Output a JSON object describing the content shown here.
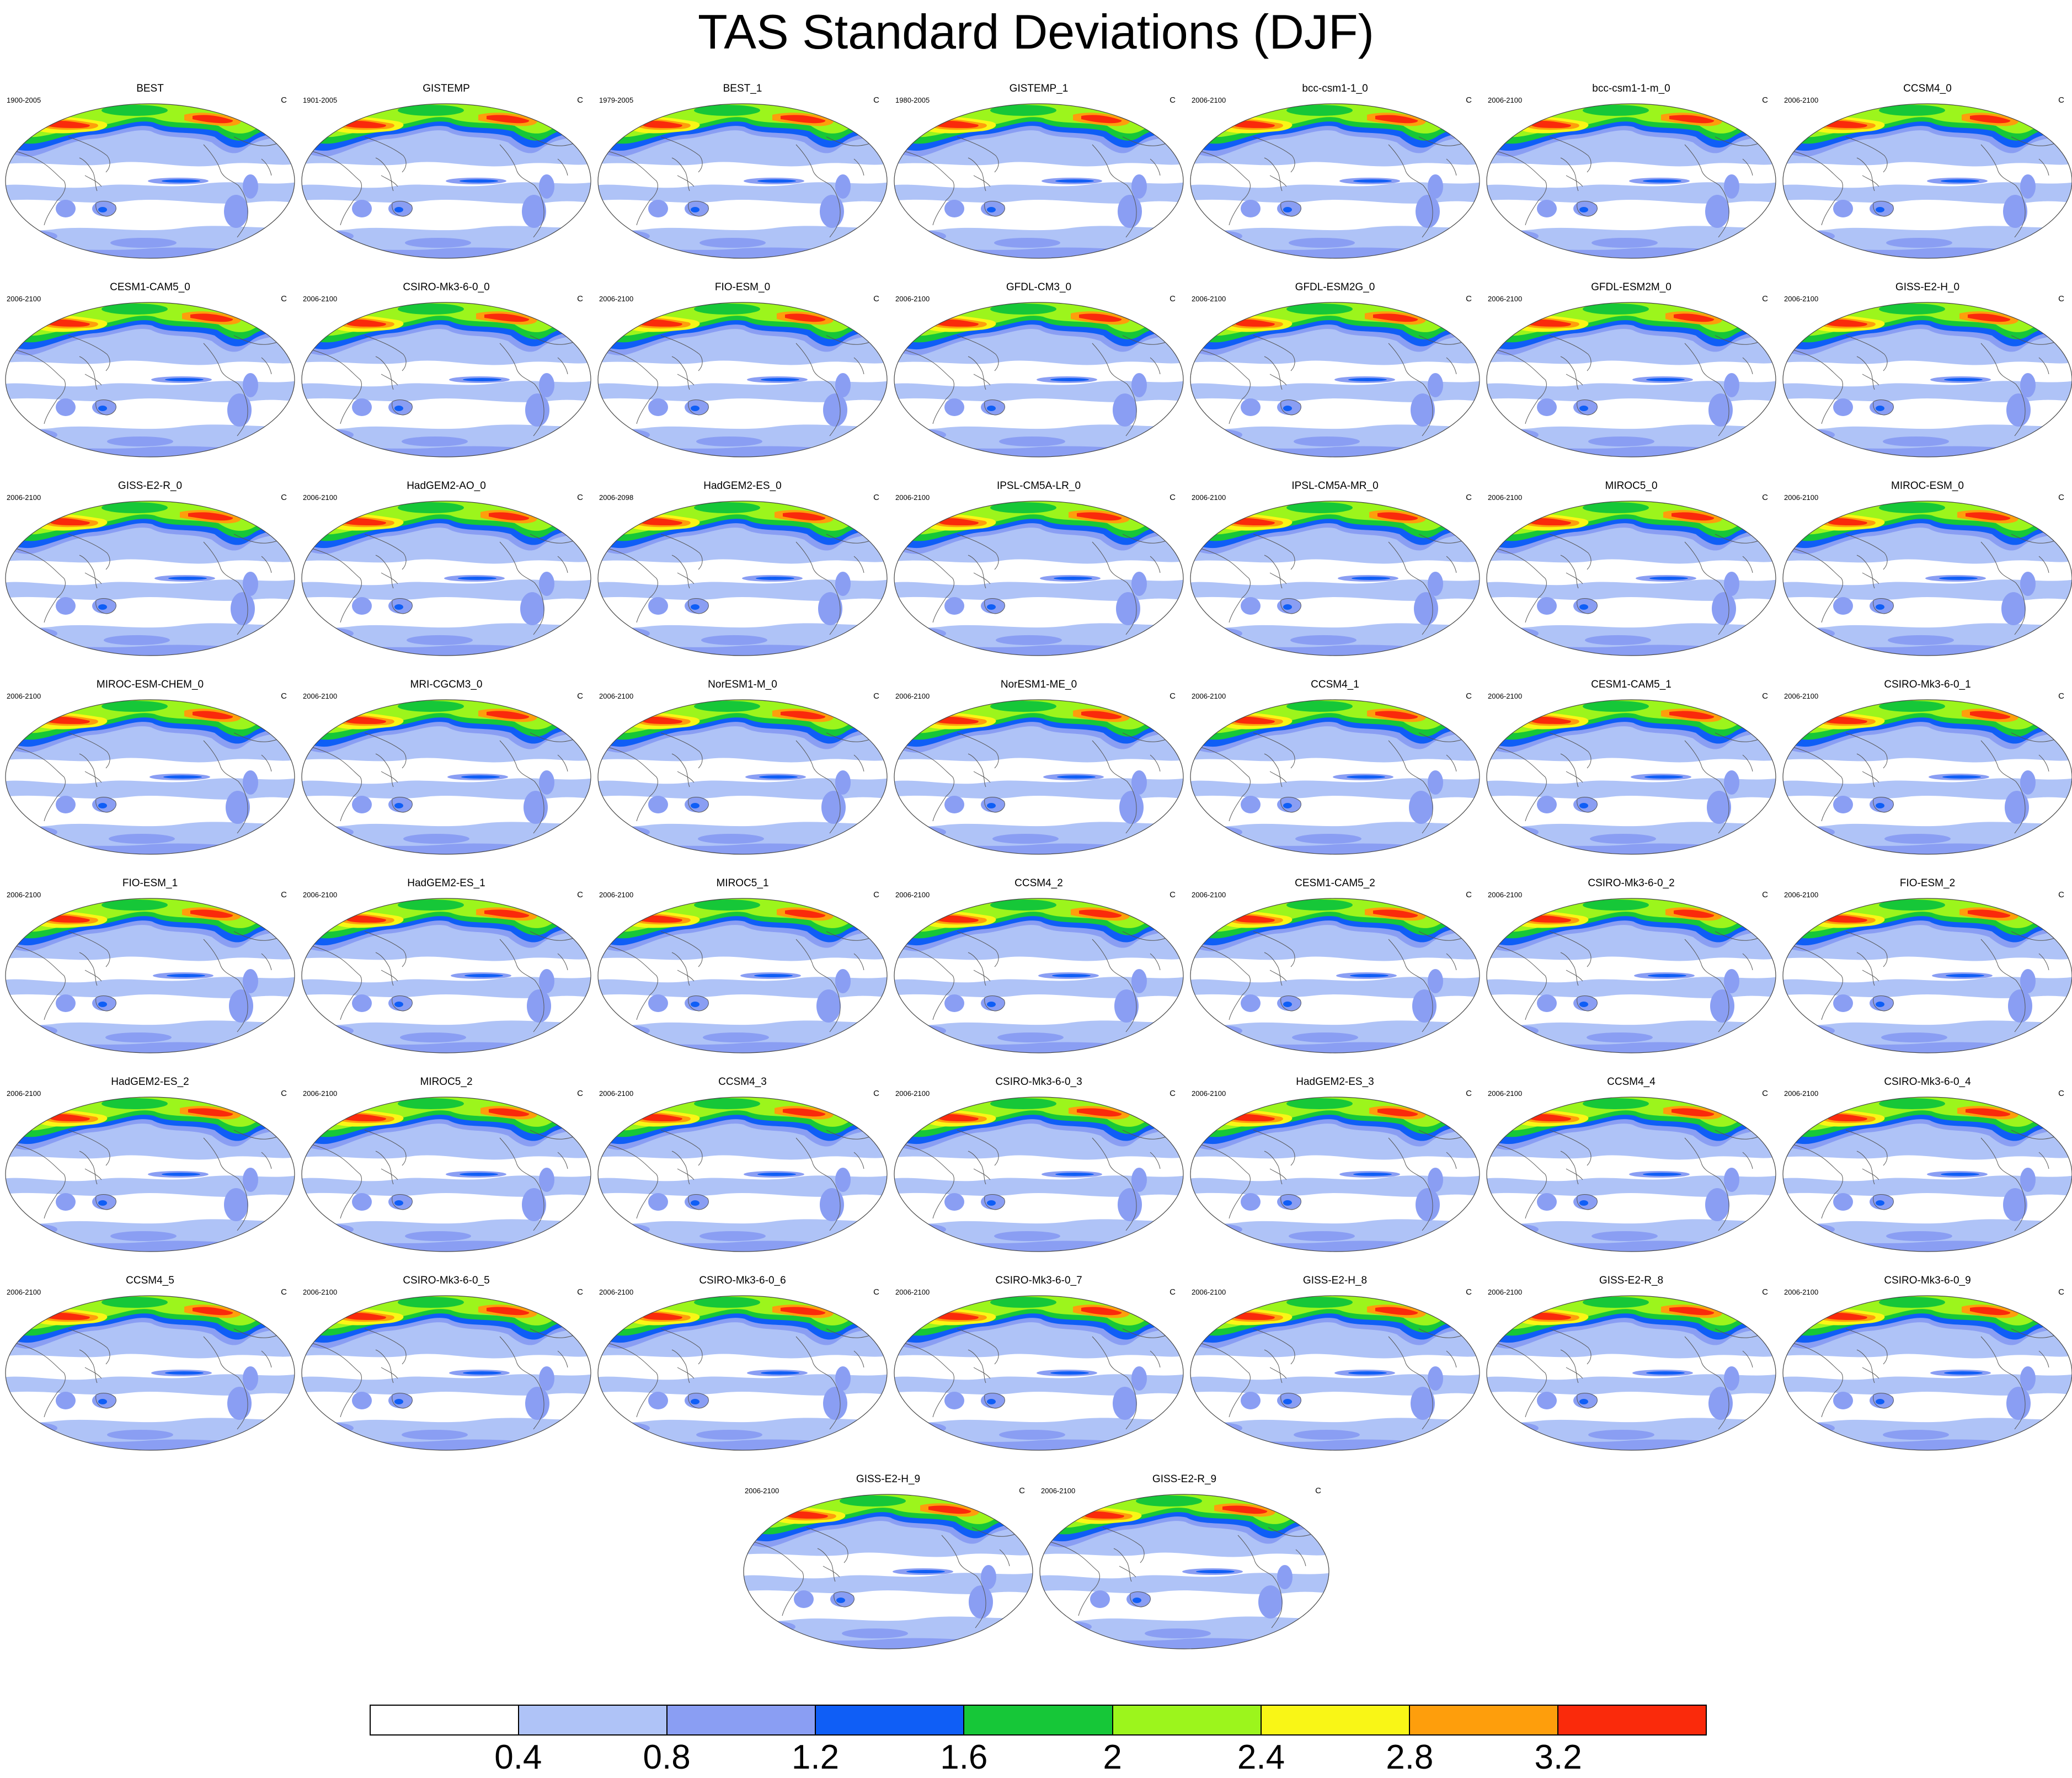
{
  "title": "TAS Standard Deviations (DJF)",
  "units": "C",
  "colors": {
    "levels": [
      "#ffffff",
      "#afc3f7",
      "#8a9ef3",
      "#0f5ef6",
      "#16c738",
      "#9cf51c",
      "#f9f616",
      "#fe9e0c",
      "#fa2a0b"
    ],
    "coastline": "#555555",
    "outline": "#444444"
  },
  "colorbar": {
    "tick_labels": [
      "0.4",
      "0.8",
      "1.2",
      "1.6",
      "2",
      "2.4",
      "2.8",
      "3.2"
    ]
  },
  "panels": [
    {
      "name": "BEST",
      "period": "1900-2005"
    },
    {
      "name": "GISTEMP",
      "period": "1901-2005"
    },
    {
      "name": "BEST_1",
      "period": "1979-2005"
    },
    {
      "name": "GISTEMP_1",
      "period": "1980-2005"
    },
    {
      "name": "bcc-csm1-1_0",
      "period": "2006-2100"
    },
    {
      "name": "bcc-csm1-1-m_0",
      "period": "2006-2100"
    },
    {
      "name": "CCSM4_0",
      "period": "2006-2100"
    },
    {
      "name": "CESM1-CAM5_0",
      "period": "2006-2100"
    },
    {
      "name": "CSIRO-Mk3-6-0_0",
      "period": "2006-2100"
    },
    {
      "name": "FIO-ESM_0",
      "period": "2006-2100"
    },
    {
      "name": "GFDL-CM3_0",
      "period": "2006-2100"
    },
    {
      "name": "GFDL-ESM2G_0",
      "period": "2006-2100"
    },
    {
      "name": "GFDL-ESM2M_0",
      "period": "2006-2100"
    },
    {
      "name": "GISS-E2-H_0",
      "period": "2006-2100"
    },
    {
      "name": "GISS-E2-R_0",
      "period": "2006-2100"
    },
    {
      "name": "HadGEM2-AO_0",
      "period": "2006-2100"
    },
    {
      "name": "HadGEM2-ES_0",
      "period": "2006-2098"
    },
    {
      "name": "IPSL-CM5A-LR_0",
      "period": "2006-2100"
    },
    {
      "name": "IPSL-CM5A-MR_0",
      "period": "2006-2100"
    },
    {
      "name": "MIROC5_0",
      "period": "2006-2100"
    },
    {
      "name": "MIROC-ESM_0",
      "period": "2006-2100"
    },
    {
      "name": "MIROC-ESM-CHEM_0",
      "period": "2006-2100"
    },
    {
      "name": "MRI-CGCM3_0",
      "period": "2006-2100"
    },
    {
      "name": "NorESM1-M_0",
      "period": "2006-2100"
    },
    {
      "name": "NorESM1-ME_0",
      "period": "2006-2100"
    },
    {
      "name": "CCSM4_1",
      "period": "2006-2100"
    },
    {
      "name": "CESM1-CAM5_1",
      "period": "2006-2100"
    },
    {
      "name": "CSIRO-Mk3-6-0_1",
      "period": "2006-2100"
    },
    {
      "name": "FIO-ESM_1",
      "period": "2006-2100"
    },
    {
      "name": "HadGEM2-ES_1",
      "period": "2006-2100"
    },
    {
      "name": "MIROC5_1",
      "period": "2006-2100"
    },
    {
      "name": "CCSM4_2",
      "period": "2006-2100"
    },
    {
      "name": "CESM1-CAM5_2",
      "period": "2006-2100"
    },
    {
      "name": "CSIRO-Mk3-6-0_2",
      "period": "2006-2100"
    },
    {
      "name": "FIO-ESM_2",
      "period": "2006-2100"
    },
    {
      "name": "HadGEM2-ES_2",
      "period": "2006-2100"
    },
    {
      "name": "MIROC5_2",
      "period": "2006-2100"
    },
    {
      "name": "CCSM4_3",
      "period": "2006-2100"
    },
    {
      "name": "CSIRO-Mk3-6-0_3",
      "period": "2006-2100"
    },
    {
      "name": "HadGEM2-ES_3",
      "period": "2006-2100"
    },
    {
      "name": "CCSM4_4",
      "period": "2006-2100"
    },
    {
      "name": "CSIRO-Mk3-6-0_4",
      "period": "2006-2100"
    },
    {
      "name": "CCSM4_5",
      "period": "2006-2100"
    },
    {
      "name": "CSIRO-Mk3-6-0_5",
      "period": "2006-2100"
    },
    {
      "name": "CSIRO-Mk3-6-0_6",
      "period": "2006-2100"
    },
    {
      "name": "CSIRO-Mk3-6-0_7",
      "period": "2006-2100"
    },
    {
      "name": "GISS-E2-H_8",
      "period": "2006-2100"
    },
    {
      "name": "GISS-E2-R_8",
      "period": "2006-2100"
    },
    {
      "name": "CSIRO-Mk3-6-0_9",
      "period": "2006-2100"
    },
    {
      "name": "GISS-E2-H_9",
      "period": "2006-2100"
    },
    {
      "name": "GISS-E2-R_9",
      "period": "2006-2100"
    }
  ]
}
